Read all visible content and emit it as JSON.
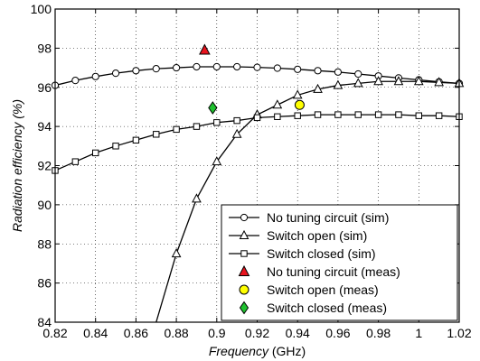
{
  "chart_data": {
    "type": "line",
    "xlabel_italic": "Frequency",
    "xlabel_unit": " (GHz)",
    "ylabel": "Radiation efficiency (%)",
    "xlim": [
      0.82,
      1.02
    ],
    "ylim": [
      84,
      100
    ],
    "xticks": [
      "0.82",
      "0.84",
      "0.86",
      "0.88",
      "0.9",
      "0.92",
      "0.94",
      "0.96",
      "0.98",
      "1",
      "1.02"
    ],
    "yticks": [
      "84",
      "86",
      "88",
      "90",
      "92",
      "94",
      "96",
      "98",
      "100"
    ],
    "grid": true,
    "legend_position": "bottom-right",
    "series": [
      {
        "name": "No tuning circuit (sim)",
        "kind": "line",
        "marker": "circle",
        "color": "#000000",
        "x": [
          0.82,
          0.83,
          0.84,
          0.85,
          0.86,
          0.87,
          0.88,
          0.89,
          0.9,
          0.91,
          0.92,
          0.93,
          0.94,
          0.95,
          0.96,
          0.97,
          0.98,
          0.99,
          1.0,
          1.01,
          1.02
        ],
        "y": [
          96.1,
          96.35,
          96.55,
          96.72,
          96.85,
          96.95,
          97.0,
          97.05,
          97.05,
          97.05,
          97.02,
          96.98,
          96.92,
          96.85,
          96.78,
          96.68,
          96.58,
          96.48,
          96.38,
          96.28,
          96.2
        ]
      },
      {
        "name": "Switch open (sim)",
        "kind": "line",
        "marker": "triangle",
        "color": "#000000",
        "x": [
          0.87,
          0.88,
          0.89,
          0.9,
          0.91,
          0.92,
          0.93,
          0.94,
          0.95,
          0.96,
          0.97,
          0.98,
          0.99,
          1.0,
          1.01,
          1.02
        ],
        "y": [
          84.0,
          87.5,
          90.3,
          92.2,
          93.6,
          94.6,
          95.1,
          95.6,
          95.9,
          96.1,
          96.2,
          96.3,
          96.3,
          96.3,
          96.25,
          96.2
        ],
        "marker_x": [
          0.88,
          0.89,
          0.9,
          0.91,
          0.92,
          0.93,
          0.94,
          0.95,
          0.96,
          0.97,
          0.98,
          0.99,
          1.0,
          1.01,
          1.02
        ],
        "marker_y": [
          87.5,
          90.3,
          92.2,
          93.6,
          94.6,
          95.1,
          95.6,
          95.9,
          96.1,
          96.2,
          96.3,
          96.3,
          96.3,
          96.25,
          96.2
        ]
      },
      {
        "name": "Switch closed (sim)",
        "kind": "line",
        "marker": "square",
        "color": "#000000",
        "x": [
          0.82,
          0.83,
          0.84,
          0.85,
          0.86,
          0.87,
          0.88,
          0.89,
          0.9,
          0.91,
          0.92,
          0.93,
          0.94,
          0.95,
          0.96,
          0.97,
          0.98,
          0.99,
          1.0,
          1.01,
          1.02
        ],
        "y": [
          91.75,
          92.2,
          92.65,
          93.0,
          93.3,
          93.6,
          93.85,
          94.0,
          94.2,
          94.3,
          94.45,
          94.5,
          94.55,
          94.6,
          94.6,
          94.6,
          94.6,
          94.6,
          94.55,
          94.55,
          94.5
        ]
      },
      {
        "name": "No tuning circuit (meas)",
        "kind": "point",
        "marker": "triangle-filled",
        "color": "#e8141e",
        "x": [
          0.894
        ],
        "y": [
          97.9
        ]
      },
      {
        "name": "Switch open (meas)",
        "kind": "point",
        "marker": "circle-filled",
        "color": "#ffff00",
        "x": [
          0.941
        ],
        "y": [
          95.1
        ]
      },
      {
        "name": "Switch closed (meas)",
        "kind": "point",
        "marker": "diamond-filled",
        "color": "#1fc12f",
        "x": [
          0.898
        ],
        "y": [
          94.95
        ]
      }
    ]
  }
}
